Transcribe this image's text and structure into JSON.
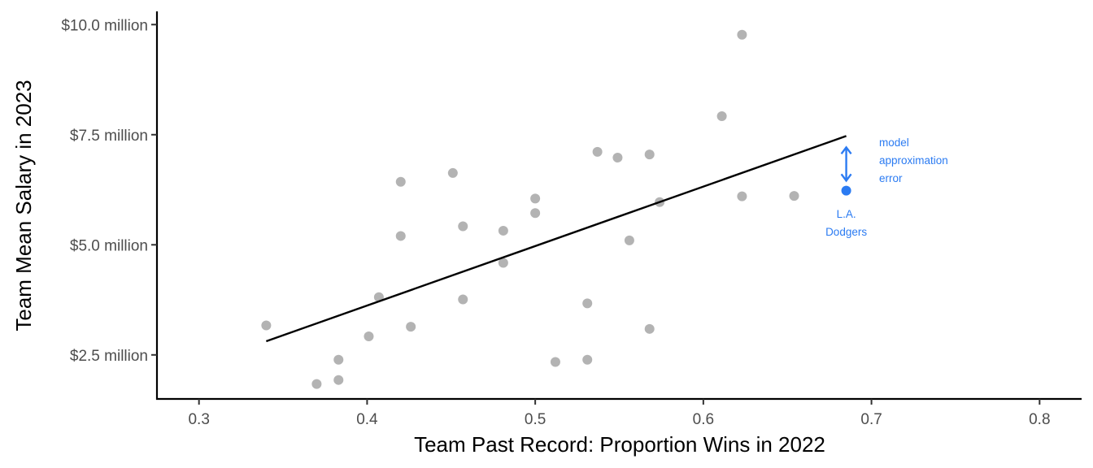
{
  "chart_data": {
    "type": "scatter",
    "xlabel": "Team Past Record: Proportion Wins in 2022",
    "ylabel": "Team Mean Salary in 2023",
    "xlim": [
      0.275,
      0.825
    ],
    "ylim": [
      1.5,
      10.3
    ],
    "x_ticks": [
      0.3,
      0.4,
      0.5,
      0.6,
      0.7,
      0.8
    ],
    "x_tick_labels": [
      "0.3",
      "0.4",
      "0.5",
      "0.6",
      "0.7",
      "0.8"
    ],
    "y_ticks": [
      2.5,
      5.0,
      7.5,
      10.0
    ],
    "y_tick_labels": [
      "$2.5 million",
      "$5.0 million",
      "$7.5 million",
      "$10.0 million"
    ],
    "grid": false,
    "points": [
      {
        "x": 0.34,
        "y": 3.17
      },
      {
        "x": 0.37,
        "y": 1.84
      },
      {
        "x": 0.383,
        "y": 2.39
      },
      {
        "x": 0.383,
        "y": 1.93
      },
      {
        "x": 0.401,
        "y": 2.92
      },
      {
        "x": 0.407,
        "y": 3.81
      },
      {
        "x": 0.42,
        "y": 6.43
      },
      {
        "x": 0.42,
        "y": 5.2
      },
      {
        "x": 0.426,
        "y": 3.14
      },
      {
        "x": 0.451,
        "y": 6.63
      },
      {
        "x": 0.457,
        "y": 5.42
      },
      {
        "x": 0.457,
        "y": 3.76
      },
      {
        "x": 0.481,
        "y": 5.32
      },
      {
        "x": 0.481,
        "y": 4.59
      },
      {
        "x": 0.5,
        "y": 6.05
      },
      {
        "x": 0.5,
        "y": 5.72
      },
      {
        "x": 0.512,
        "y": 2.34
      },
      {
        "x": 0.531,
        "y": 3.67
      },
      {
        "x": 0.531,
        "y": 2.39
      },
      {
        "x": 0.537,
        "y": 7.11
      },
      {
        "x": 0.549,
        "y": 6.98
      },
      {
        "x": 0.556,
        "y": 5.1
      },
      {
        "x": 0.568,
        "y": 7.05
      },
      {
        "x": 0.568,
        "y": 3.09
      },
      {
        "x": 0.574,
        "y": 5.97
      },
      {
        "x": 0.611,
        "y": 7.92
      },
      {
        "x": 0.623,
        "y": 9.77
      },
      {
        "x": 0.623,
        "y": 6.1
      },
      {
        "x": 0.654,
        "y": 6.11
      }
    ],
    "highlight_point": {
      "x": 0.685,
      "y": 6.23,
      "label_lines": [
        "L.A.",
        "Dodgers"
      ]
    },
    "regression_line": {
      "x": [
        0.34,
        0.685
      ],
      "y": [
        2.81,
        7.47
      ]
    },
    "error_annotation": {
      "label_lines": [
        "model",
        "approximation",
        "error"
      ]
    },
    "colors": {
      "points": "#b3b3b3",
      "highlight": "#2b7bf2",
      "line": "#000000"
    }
  }
}
